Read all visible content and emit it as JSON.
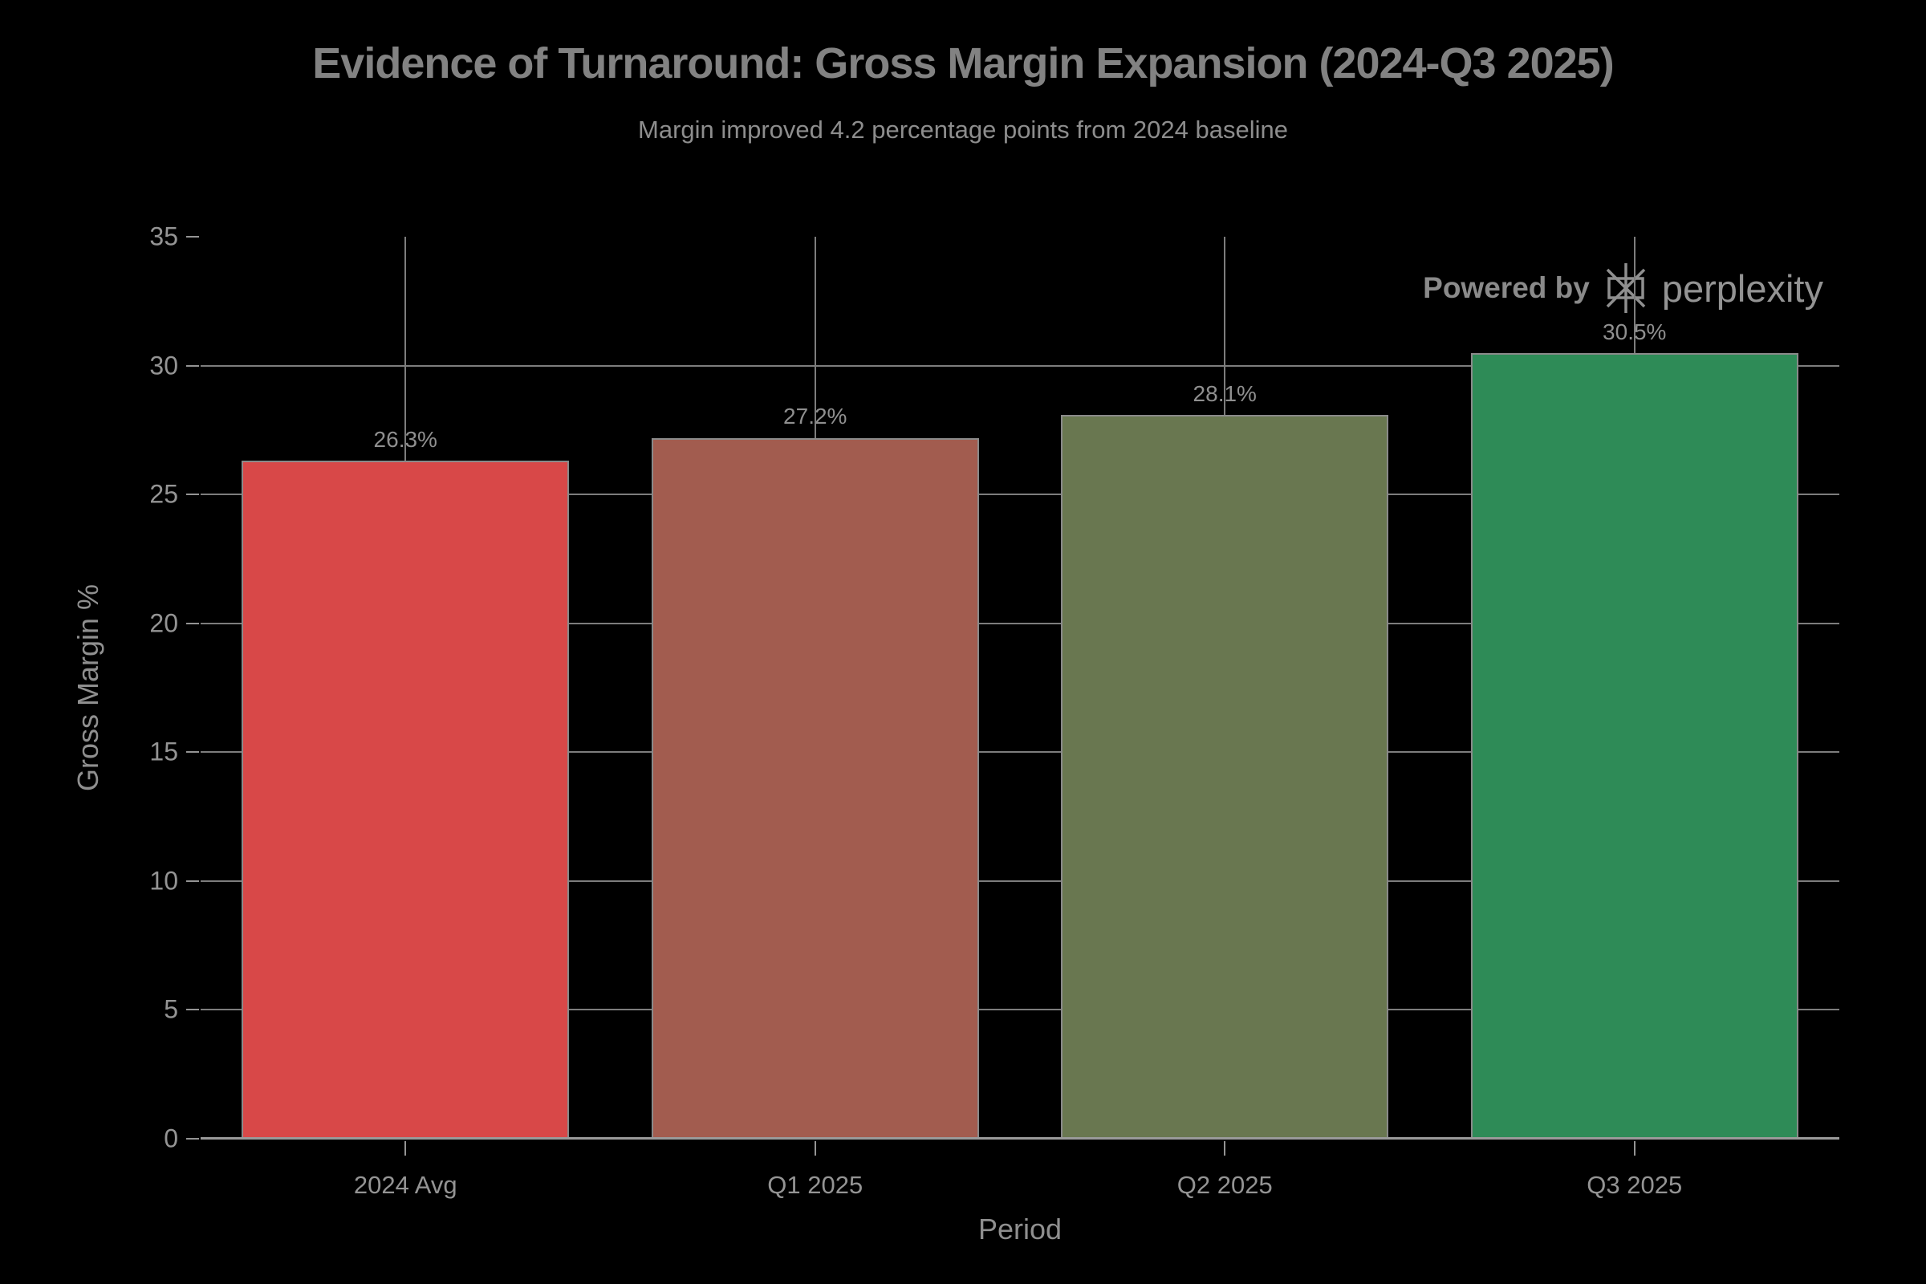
{
  "page": {
    "background": "#000000"
  },
  "header": {
    "title": "Evidence of Turnaround: Gross Margin Expansion (2024-Q3 2025)",
    "subtitle": "Margin improved 4.2 percentage points from 2024 baseline"
  },
  "watermark": {
    "prefix": "Powered by",
    "brand": "perplexity",
    "logo_icon": "perplexity-asterisk-icon",
    "color": "#8f8f8f"
  },
  "chart_data": {
    "type": "bar",
    "title": "Evidence of Turnaround: Gross Margin Expansion (2024-Q3 2025)",
    "subtitle": "Margin improved 4.2 percentage points from 2024 baseline",
    "categories": [
      "2024 Avg",
      "Q1 2025",
      "Q2 2025",
      "Q3 2025"
    ],
    "values": [
      26.3,
      27.2,
      28.1,
      30.5
    ],
    "value_labels": [
      "26.3%",
      "27.2%",
      "28.1%",
      "30.5%"
    ],
    "bar_colors": [
      "#D84848",
      "#A25C4F",
      "#697750",
      "#2E8B57"
    ],
    "bar_border_color": "#8A8A8A",
    "xlabel": "Period",
    "ylabel": "Gross Margin %",
    "ylim": [
      0,
      35
    ],
    "yticks": [
      0,
      5,
      10,
      15,
      20,
      25,
      30,
      35
    ],
    "grid": true,
    "gridline_color": "#7D7D7D",
    "axis_line_color": "#9A9A9A",
    "tick_label_color": "#949494",
    "text_color": "#8C8C8C",
    "background_color": "#000000",
    "legend": "none"
  }
}
